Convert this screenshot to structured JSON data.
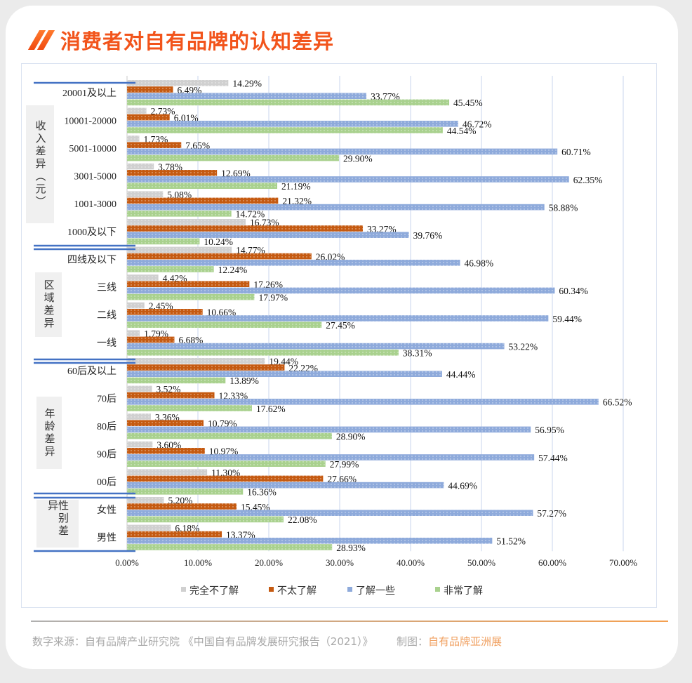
{
  "title": "消费者对自有品牌的认知差异",
  "footer": {
    "source": "数字来源：自有品牌产业研究院 《中国自有品牌发展研究报告（2021）》",
    "credit_label": "制图：",
    "credit_value": "自有品牌亚洲展"
  },
  "chart_data": {
    "type": "bar",
    "orientation": "horizontal",
    "title": "消费者对自有品牌的认知差异",
    "xlim": [
      0,
      70
    ],
    "xticks": [
      "0.00%",
      "10.00%",
      "20.00%",
      "30.00%",
      "40.00%",
      "50.00%",
      "60.00%",
      "70.00%"
    ],
    "grid": true,
    "legend_position": "bottom",
    "groups": [
      {
        "label": "收入差异（元）",
        "categories": [
          "20001及以上",
          "10001-20000",
          "5001-10000",
          "3001-5000",
          "1001-3000",
          "1000及以下"
        ]
      },
      {
        "label": "区域差异",
        "categories": [
          "四线及以下",
          "三线",
          "二线",
          "一线"
        ]
      },
      {
        "label": "年龄差异",
        "categories": [
          "60后及以上",
          "70后",
          "80后",
          "90后",
          "00后"
        ]
      },
      {
        "label": "性别差异",
        "categories": [
          "女性",
          "男性"
        ]
      }
    ],
    "categories": [
      "20001及以上",
      "10001-20000",
      "5001-10000",
      "3001-5000",
      "1001-3000",
      "1000及以下",
      "四线及以下",
      "三线",
      "二线",
      "一线",
      "60后及以上",
      "70后",
      "80后",
      "90后",
      "00后",
      "女性",
      "男性"
    ],
    "series": [
      {
        "name": "完全不了解",
        "color": "#d0d0d0",
        "values": [
          14.29,
          2.73,
          1.73,
          3.78,
          5.08,
          16.73,
          14.77,
          4.42,
          2.45,
          1.79,
          19.44,
          3.52,
          3.36,
          3.6,
          11.3,
          5.2,
          6.18
        ]
      },
      {
        "name": "不太了解",
        "color": "#c55a11",
        "values": [
          6.49,
          6.01,
          7.65,
          12.69,
          21.32,
          33.27,
          26.02,
          17.26,
          10.66,
          6.68,
          22.22,
          12.33,
          10.79,
          10.97,
          27.66,
          15.45,
          13.37
        ]
      },
      {
        "name": "了解一些",
        "color": "#8eaadb",
        "values": [
          33.77,
          46.72,
          60.71,
          62.35,
          58.88,
          39.76,
          46.98,
          60.34,
          59.44,
          53.22,
          44.44,
          66.52,
          56.95,
          57.44,
          44.69,
          57.27,
          51.52
        ]
      },
      {
        "name": "非常了解",
        "color": "#a9d18e",
        "values": [
          45.45,
          44.54,
          29.9,
          21.19,
          14.72,
          10.24,
          12.24,
          17.97,
          27.45,
          38.31,
          13.89,
          17.62,
          28.9,
          27.99,
          16.36,
          22.08,
          28.93
        ]
      }
    ]
  }
}
